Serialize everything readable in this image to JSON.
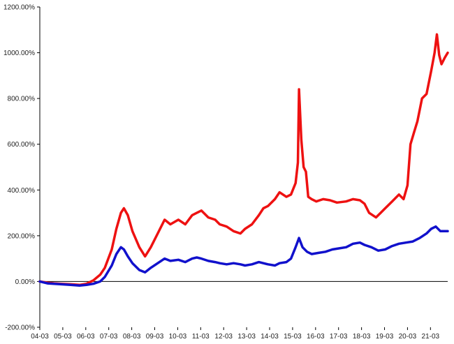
{
  "chart_data": {
    "type": "line",
    "title": "",
    "xlabel": "",
    "ylabel": "",
    "ylim": [
      -200,
      1200
    ],
    "y_ticks": [
      -200,
      0,
      200,
      400,
      600,
      800,
      1000,
      1200
    ],
    "y_tick_labels": [
      "-200.00%",
      "0.00%",
      "200.00%",
      "400.00%",
      "600.00%",
      "800.00%",
      "1000.00%",
      "1200.00%"
    ],
    "x_ticks": [
      2004.17,
      2005.17,
      2006.17,
      2007.17,
      2008.17,
      2009.17,
      2010.17,
      2011.17,
      2012.17,
      2013.17,
      2014.17,
      2015.17,
      2016.17,
      2017.17,
      2018.17,
      2019.17,
      2020.17,
      2021.17
    ],
    "x_tick_labels": [
      "04-03",
      "05-03",
      "06-03",
      "07-03",
      "08-03",
      "09-03",
      "10-03",
      "11-03",
      "12-03",
      "13-03",
      "14-03",
      "15-03",
      "16-03",
      "17-03",
      "18-03",
      "19-03",
      "20-03",
      "21-03"
    ],
    "xlim": [
      2004.17,
      2021.92
    ],
    "grid": false,
    "legend": "none",
    "series": [
      {
        "color": "#ee1111",
        "x": [
          2004.17,
          2004.5,
          2004.8,
          2005.1,
          2005.5,
          2005.9,
          2006.2,
          2006.5,
          2006.8,
          2007.0,
          2007.3,
          2007.5,
          2007.7,
          2007.83,
          2008.0,
          2008.2,
          2008.5,
          2008.75,
          2009.0,
          2009.3,
          2009.6,
          2009.85,
          2010.2,
          2010.5,
          2010.8,
          2011.0,
          2011.2,
          2011.5,
          2011.8,
          2012.0,
          2012.3,
          2012.6,
          2012.9,
          2013.1,
          2013.4,
          2013.7,
          2013.9,
          2014.1,
          2014.4,
          2014.6,
          2014.9,
          2015.1,
          2015.3,
          2015.4,
          2015.45,
          2015.55,
          2015.65,
          2015.75,
          2015.85,
          2016.0,
          2016.2,
          2016.5,
          2016.8,
          2017.1,
          2017.5,
          2017.8,
          2018.1,
          2018.3,
          2018.5,
          2018.8,
          2019.0,
          2019.2,
          2019.5,
          2019.8,
          2020.0,
          2020.17,
          2020.3,
          2020.45,
          2020.6,
          2020.8,
          2021.0,
          2021.2,
          2021.35,
          2021.45,
          2021.55,
          2021.65,
          2021.8,
          2021.92
        ],
        "y": [
          0,
          -5,
          -8,
          -10,
          -12,
          -15,
          -10,
          5,
          30,
          60,
          140,
          230,
          300,
          320,
          290,
          220,
          150,
          110,
          150,
          210,
          270,
          250,
          270,
          250,
          290,
          300,
          310,
          280,
          270,
          250,
          240,
          220,
          210,
          230,
          250,
          290,
          320,
          330,
          360,
          390,
          370,
          380,
          430,
          520,
          840,
          620,
          500,
          480,
          370,
          360,
          350,
          360,
          355,
          345,
          350,
          360,
          355,
          340,
          300,
          280,
          300,
          320,
          350,
          380,
          360,
          420,
          600,
          650,
          700,
          800,
          820,
          920,
          1000,
          1080,
          990,
          950,
          980,
          1000
        ]
      },
      {
        "color": "#1111cc",
        "x": [
          2004.17,
          2004.5,
          2004.8,
          2005.1,
          2005.5,
          2005.9,
          2006.2,
          2006.5,
          2006.8,
          2007.0,
          2007.3,
          2007.5,
          2007.7,
          2007.83,
          2008.0,
          2008.2,
          2008.5,
          2008.75,
          2009.0,
          2009.3,
          2009.6,
          2009.85,
          2010.2,
          2010.5,
          2010.8,
          2011.0,
          2011.2,
          2011.5,
          2011.8,
          2012.0,
          2012.3,
          2012.6,
          2012.9,
          2013.1,
          2013.4,
          2013.7,
          2013.9,
          2014.1,
          2014.4,
          2014.6,
          2014.9,
          2015.1,
          2015.3,
          2015.45,
          2015.6,
          2015.8,
          2016.0,
          2016.3,
          2016.6,
          2016.9,
          2017.2,
          2017.5,
          2017.8,
          2018.1,
          2018.3,
          2018.6,
          2018.9,
          2019.2,
          2019.5,
          2019.8,
          2020.1,
          2020.4,
          2020.7,
          2021.0,
          2021.2,
          2021.4,
          2021.6,
          2021.92
        ],
        "y": [
          0,
          -8,
          -10,
          -12,
          -15,
          -18,
          -15,
          -10,
          0,
          20,
          70,
          120,
          150,
          140,
          110,
          80,
          50,
          40,
          60,
          80,
          100,
          90,
          95,
          85,
          100,
          105,
          100,
          90,
          85,
          80,
          75,
          80,
          75,
          70,
          75,
          85,
          80,
          75,
          70,
          80,
          85,
          100,
          150,
          190,
          150,
          130,
          120,
          125,
          130,
          140,
          145,
          150,
          165,
          170,
          160,
          150,
          135,
          140,
          155,
          165,
          170,
          175,
          190,
          210,
          230,
          240,
          220,
          220
        ]
      }
    ]
  }
}
